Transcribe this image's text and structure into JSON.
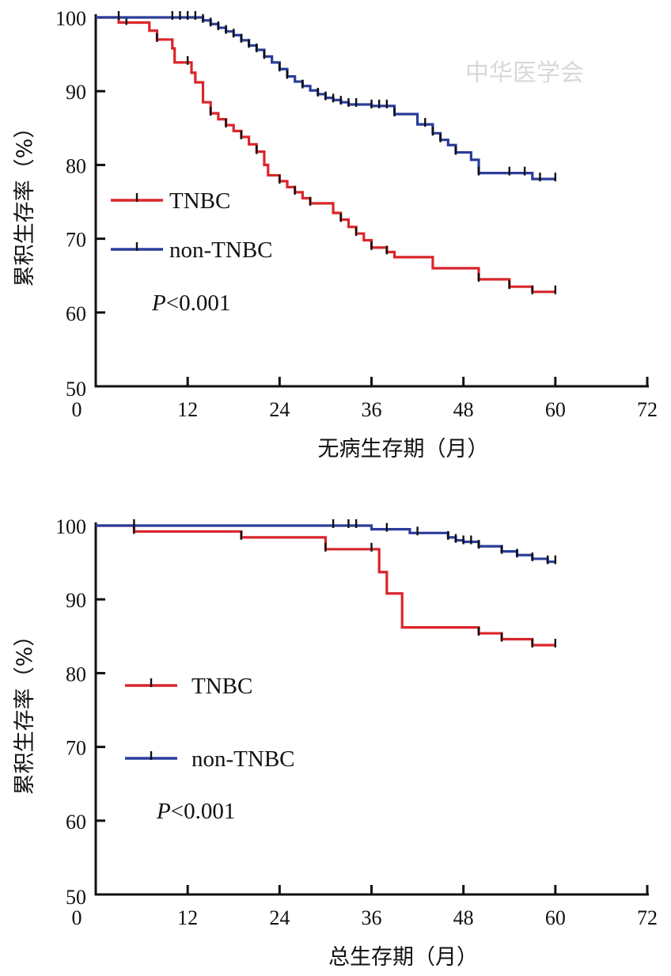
{
  "watermark": "中华医学会",
  "chart_data": [
    {
      "type": "line",
      "subtype": "kaplan-meier",
      "xlabel": "无病生存期（月）",
      "ylabel": "累积生存率（%）",
      "xlim": [
        0,
        72
      ],
      "ylim": [
        50,
        100
      ],
      "xticks": [
        "0",
        "12",
        "24",
        "36",
        "48",
        "60",
        "72"
      ],
      "yticks": [
        "50",
        "60",
        "70",
        "80",
        "90",
        "100"
      ],
      "legend": {
        "placement": "left-middle"
      },
      "annotation": {
        "p_symbol": "P",
        "p_text": "<0.001"
      },
      "series": [
        {
          "name": "TNBC",
          "color": "#d9262b",
          "steps": [
            [
              0,
              100
            ],
            [
              3,
              99.3
            ],
            [
              7,
              98.2
            ],
            [
              8,
              97
            ],
            [
              10,
              95.8
            ],
            [
              10.3,
              93.9
            ],
            [
              12.5,
              92.5
            ],
            [
              13,
              91.2
            ],
            [
              14,
              88.5
            ],
            [
              15,
              87
            ],
            [
              16,
              86.2
            ],
            [
              17,
              85.4
            ],
            [
              18,
              84.6
            ],
            [
              19,
              83.8
            ],
            [
              20,
              82.8
            ],
            [
              21,
              81.8
            ],
            [
              22,
              80
            ],
            [
              22.5,
              78.6
            ],
            [
              24,
              77.8
            ],
            [
              25,
              77
            ],
            [
              26,
              76.3
            ],
            [
              27,
              75.5
            ],
            [
              28,
              74.8
            ],
            [
              31,
              73.5
            ],
            [
              32,
              72.6
            ],
            [
              33,
              71.6
            ],
            [
              34,
              70.7
            ],
            [
              35,
              69.8
            ],
            [
              36,
              68.8
            ],
            [
              38,
              68.2
            ],
            [
              39,
              67.5
            ],
            [
              44,
              66
            ],
            [
              50,
              64.5
            ],
            [
              54,
              63.5
            ],
            [
              57,
              62.8
            ]
          ],
          "end_x": 60,
          "censored_x": [
            4,
            8,
            12,
            15,
            17,
            19,
            21,
            24,
            26,
            28,
            32,
            34,
            36,
            38,
            50,
            54,
            57,
            60
          ]
        },
        {
          "name": "non-TNBC",
          "color": "#2b3d9a",
          "steps": [
            [
              0,
              100
            ],
            [
              14,
              99.6
            ],
            [
              15,
              99.1
            ],
            [
              16,
              98.6
            ],
            [
              17,
              98.1
            ],
            [
              18,
              97.6
            ],
            [
              19,
              96.9
            ],
            [
              20,
              96.2
            ],
            [
              21,
              95.6
            ],
            [
              22,
              94.7
            ],
            [
              23,
              93.9
            ],
            [
              24,
              93
            ],
            [
              25,
              92
            ],
            [
              26,
              91.3
            ],
            [
              27,
              90.7
            ],
            [
              28,
              90.1
            ],
            [
              29,
              89.6
            ],
            [
              30,
              89.1
            ],
            [
              31,
              88.8
            ],
            [
              32,
              88.5
            ],
            [
              33,
              88.2
            ],
            [
              36,
              88
            ],
            [
              39,
              86.9
            ],
            [
              42,
              85.5
            ],
            [
              44,
              84.3
            ],
            [
              45,
              83.4
            ],
            [
              46,
              82.7
            ],
            [
              47,
              81.7
            ],
            [
              49,
              80.7
            ],
            [
              50,
              78.9
            ],
            [
              57,
              78.1
            ]
          ],
          "end_x": 60,
          "censored_x": [
            3,
            10,
            11,
            12,
            13,
            14,
            15,
            16,
            17,
            18,
            19,
            20,
            21,
            22,
            24,
            25,
            27,
            29,
            30,
            31,
            32,
            33,
            34,
            36,
            37,
            38,
            39,
            43,
            44,
            45,
            47,
            50,
            54,
            56,
            58,
            60
          ]
        }
      ]
    },
    {
      "type": "line",
      "subtype": "kaplan-meier",
      "xlabel": "总生存期（月）",
      "ylabel": "累积生存率（%）",
      "xlim": [
        0,
        72
      ],
      "ylim": [
        50,
        100
      ],
      "xticks": [
        "0",
        "12",
        "24",
        "36",
        "48",
        "60",
        "72"
      ],
      "yticks": [
        "50",
        "60",
        "70",
        "80",
        "90",
        "100"
      ],
      "legend": {
        "placement": "left-middle"
      },
      "annotation": {
        "p_symbol": "P",
        "p_text": "<0.001"
      },
      "series": [
        {
          "name": "TNBC",
          "color": "#d9262b",
          "steps": [
            [
              0,
              100
            ],
            [
              5,
              99.2
            ],
            [
              19,
              98.4
            ],
            [
              30,
              96.8
            ],
            [
              37,
              93.7
            ],
            [
              38,
              90.8
            ],
            [
              40,
              86.2
            ],
            [
              50,
              85.4
            ],
            [
              53,
              84.6
            ],
            [
              57,
              83.8
            ]
          ],
          "end_x": 60,
          "censored_x": [
            5,
            19,
            30,
            36,
            50,
            53,
            57,
            60
          ]
        },
        {
          "name": "non-TNBC",
          "color": "#2b3d9a",
          "steps": [
            [
              0,
              100
            ],
            [
              36,
              99.5
            ],
            [
              41,
              99
            ],
            [
              46,
              98.4
            ],
            [
              47,
              98
            ],
            [
              48,
              97.8
            ],
            [
              50,
              97.2
            ],
            [
              53,
              96.5
            ],
            [
              55,
              96
            ],
            [
              57,
              95.5
            ],
            [
              59,
              95.1
            ]
          ],
          "end_x": 60,
          "censored_x": [
            5,
            31,
            33,
            34,
            38,
            42,
            46,
            47,
            48,
            49,
            50,
            53,
            55,
            57,
            59,
            60
          ]
        }
      ]
    }
  ]
}
